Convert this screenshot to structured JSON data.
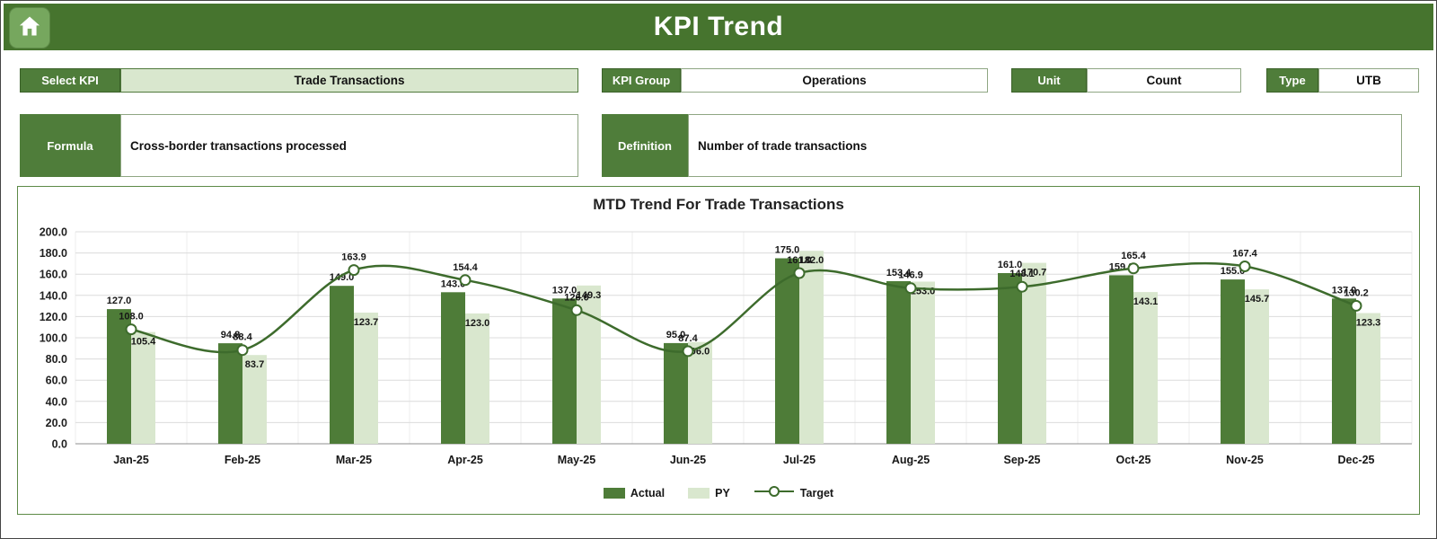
{
  "header": {
    "title": "KPI Trend"
  },
  "filters": {
    "select_kpi": {
      "label": "Select KPI",
      "value": "Trade Transactions"
    },
    "kpi_group": {
      "label": "KPI Group",
      "value": "Operations"
    },
    "unit": {
      "label": "Unit",
      "value": "Count"
    },
    "type": {
      "label": "Type",
      "value": "UTB"
    }
  },
  "details": {
    "formula": {
      "label": "Formula",
      "value": "Cross-border transactions processed"
    },
    "definition": {
      "label": "Definition",
      "value": "Number of trade transactions"
    }
  },
  "chart_data": {
    "type": "bar",
    "subtype": "combo-bar-line",
    "title": "MTD Trend For Trade Transactions",
    "categories": [
      "Jan-25",
      "Feb-25",
      "Mar-25",
      "Apr-25",
      "May-25",
      "Jun-25",
      "Jul-25",
      "Aug-25",
      "Sep-25",
      "Oct-25",
      "Nov-25",
      "Dec-25"
    ],
    "series": [
      {
        "name": "Actual",
        "type": "bar",
        "color": "#4e7c38",
        "values": [
          127.0,
          94.8,
          149.0,
          143.0,
          137.0,
          95.0,
          175.0,
          153.4,
          161.0,
          159.0,
          155.0,
          137.0
        ]
      },
      {
        "name": "PY",
        "type": "bar",
        "color": "#d9e7ce",
        "values": [
          105.4,
          83.7,
          123.7,
          123.0,
          149.3,
          96.0,
          182.0,
          153.0,
          170.7,
          143.1,
          145.7,
          123.3
        ]
      },
      {
        "name": "Target",
        "type": "line",
        "color": "#3d6b2c",
        "values": [
          108.0,
          88.4,
          163.9,
          154.4,
          126.0,
          87.4,
          161.0,
          146.9,
          148.1,
          165.4,
          167.4,
          130.2
        ]
      }
    ],
    "ylim": [
      0,
      200
    ],
    "ytick_step": 20,
    "ytick_format": "one-decimal",
    "grid": true,
    "legend_position": "bottom"
  },
  "colors": {
    "header_bg": "#46742e",
    "label_bg": "#4f7d3a",
    "accent_light": "#d9e7ce",
    "panel_border": "#5d8a47",
    "actual_bar": "#4e7c38",
    "py_bar": "#d9e7ce",
    "target_line": "#3d6b2c"
  }
}
